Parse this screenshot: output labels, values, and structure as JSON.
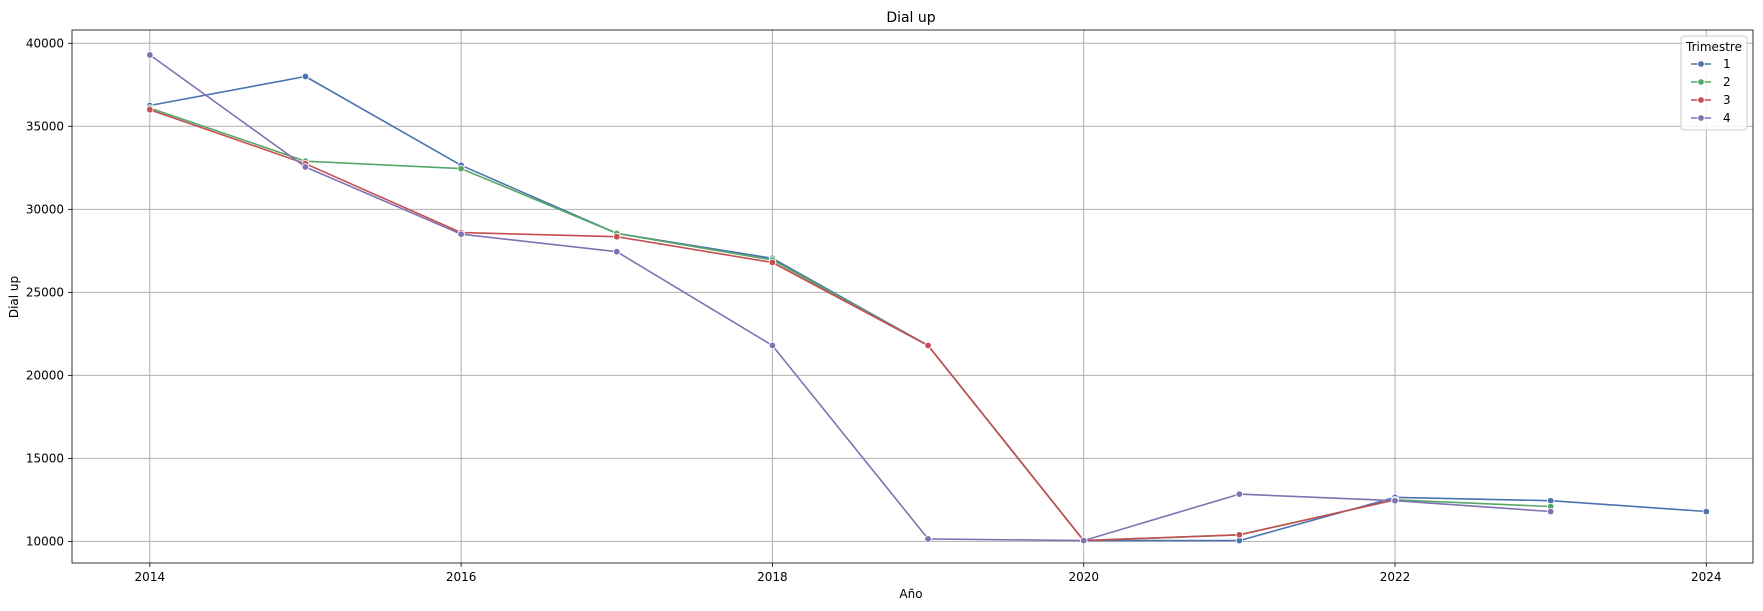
{
  "chart_data": {
    "type": "line",
    "title": "Dial up",
    "xlabel": "Año",
    "ylabel": "Dial up",
    "xlim": [
      2013.5,
      2024.3
    ],
    "ylim": [
      8700,
      40800
    ],
    "xticks": [
      2014,
      2016,
      2018,
      2020,
      2022,
      2024
    ],
    "yticks": [
      10000,
      15000,
      20000,
      25000,
      30000,
      35000,
      40000
    ],
    "grid": true,
    "legend": {
      "title": "Trimestre",
      "placement": "top-right"
    },
    "series": [
      {
        "name": "1",
        "color": "#4c72b0",
        "x": [
          2014,
          2015,
          2016,
          2017,
          2018,
          2019,
          2020,
          2021,
          2022,
          2023,
          2024
        ],
        "y": [
          36250,
          38000,
          32650,
          28550,
          27050,
          21800,
          10050,
          10050,
          12650,
          12450,
          11800
        ]
      },
      {
        "name": "2",
        "color": "#55a868",
        "x": [
          2014,
          2015,
          2016,
          2017,
          2018,
          2019,
          2020,
          2021,
          2022,
          2023
        ],
        "y": [
          36100,
          32900,
          32450,
          28550,
          26950,
          21800,
          10050,
          10400,
          12500,
          12100
        ]
      },
      {
        "name": "3",
        "color": "#c44e52",
        "x": [
          2014,
          2015,
          2016,
          2017,
          2018,
          2019,
          2020,
          2021,
          2022
        ],
        "y": [
          36000,
          32750,
          28600,
          28350,
          26800,
          21800,
          10050,
          10400,
          12500
        ]
      },
      {
        "name": "4",
        "color": "#8172b3",
        "x": [
          2014,
          2015,
          2016,
          2017,
          2018,
          2019,
          2020,
          2021,
          2022,
          2023
        ],
        "y": [
          39300,
          32550,
          28500,
          27450,
          21800,
          10150,
          10050,
          12850,
          12450,
          11800
        ]
      }
    ]
  }
}
